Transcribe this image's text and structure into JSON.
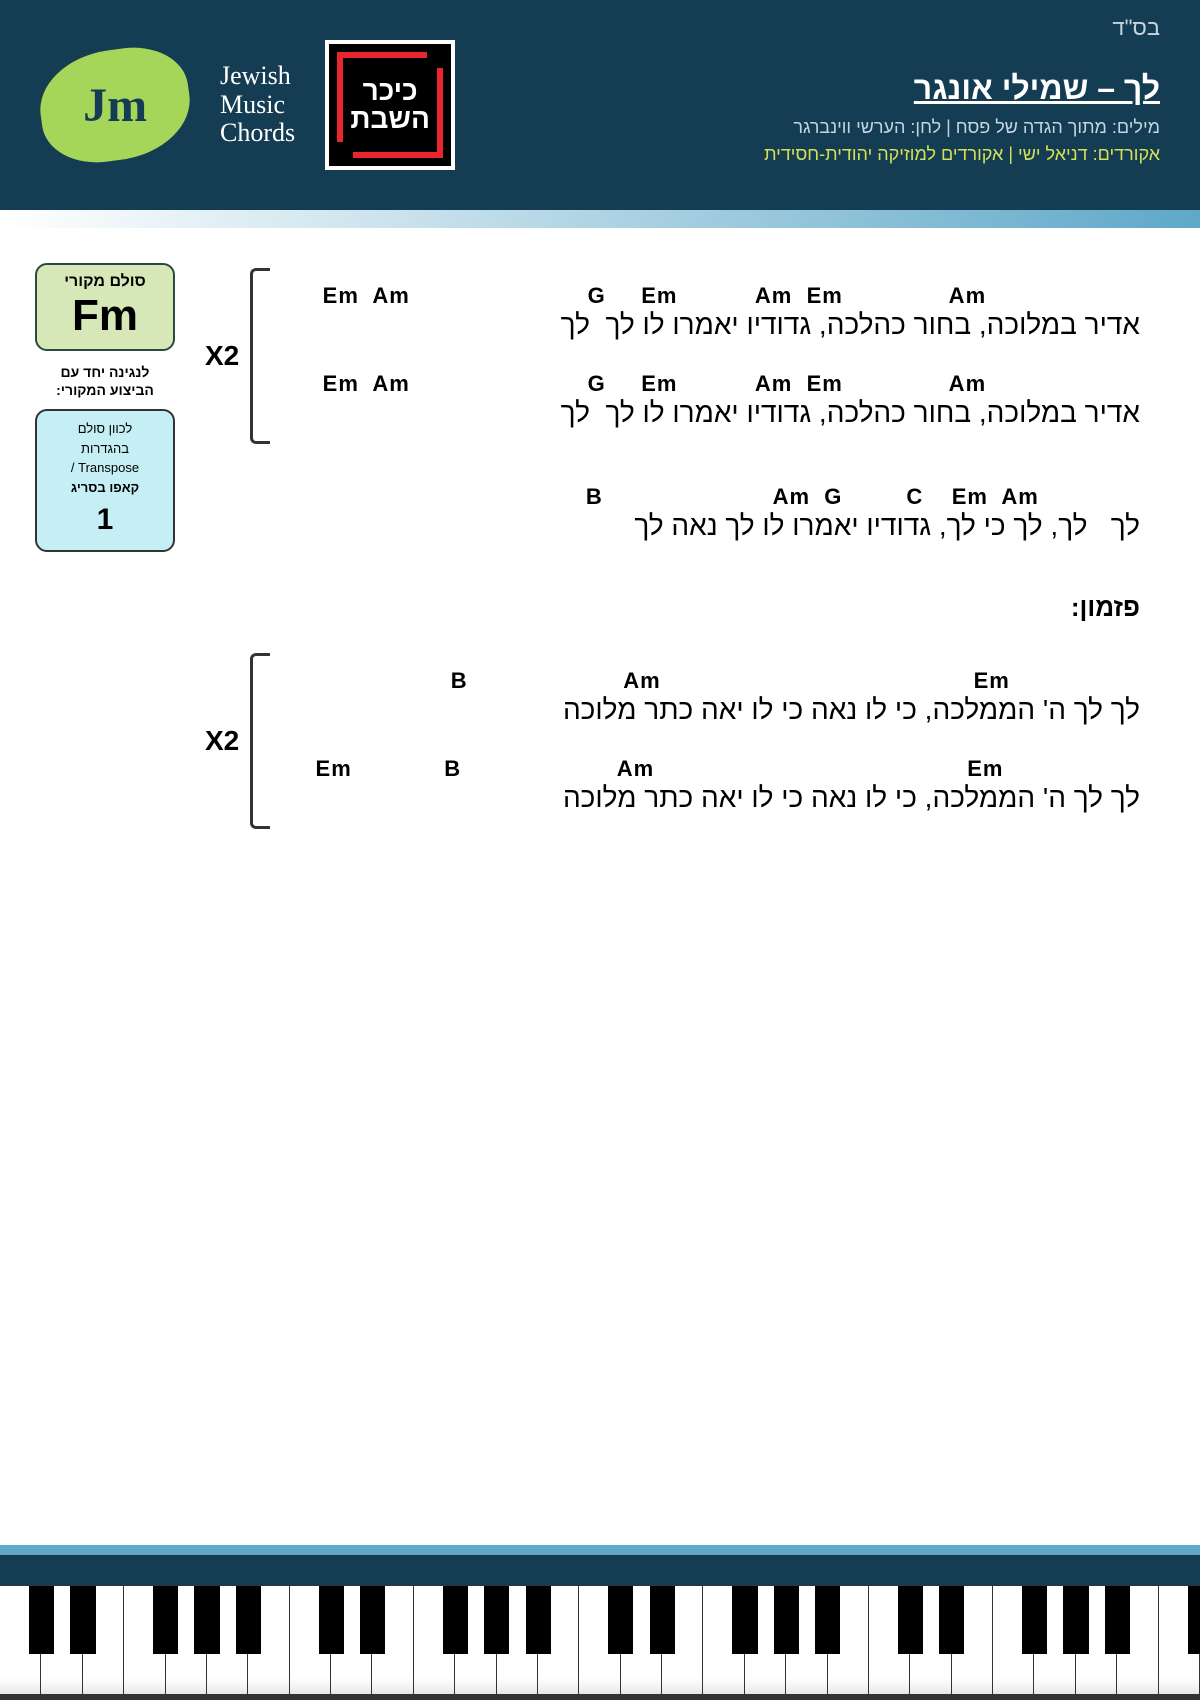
{
  "bsd": "בס\"ד",
  "logo": {
    "jm": "Jm",
    "subtitle": "Jewish\nMusic\nChords",
    "kikar1": "כיכר",
    "kikar2": "השבת"
  },
  "title": "לך – שמילי אונגר",
  "credits1": "מילים: מתוך הגדה של פסח | לחן: הערשי ווינברגר",
  "credits2": "אקורדים: דניאל ישי | אקורדים למוזיקה יהודית-חסידית",
  "keybox": {
    "label": "סולם מקורי",
    "chord": "Fm",
    "playwith": "לנגינה יחד עם\nהביצוע המקורי:",
    "capo1": "לכוון סולם",
    "capo2": "בהגדרות",
    "capo3": "Transpose /",
    "capo4": "קאפו בסריג",
    "caponum": "1"
  },
  "x2": "X2",
  "verse1": {
    "line1_ch": "      Em  Am                         G     Em           Am  Em               Am",
    "line1_ly": "אדיר במלוכה, בחור כהלכה, גדודיו יאמרו לו לך  לך",
    "line2_ch": "      Em  Am                         G     Em           Am  Em               Am",
    "line2_ly": "אדיר במלוכה, בחור כהלכה, גדודיו יאמרו לו לך  לך"
  },
  "bridge": {
    "ch": "                                           B                        Am  G         C    Em  Am",
    "ly": "לך   לך, לך כי לך, גדודיו יאמרו לו לך נאה לך"
  },
  "chorus_label": "פזמון:",
  "chorus": {
    "line1_ch": "                        B                      Am                                            Em",
    "line1_ly": "לך לך ה' הממלכה, כי לו נאה כי לו יאה כתר מלוכה",
    "line2_ch": "     Em             B                      Am                                            Em",
    "line2_ly": "לך לך ה' הממלכה, כי לו נאה כי לו יאה כתר מלוכה"
  },
  "colors": {
    "header": "#143c52",
    "accent": "#a5d65a",
    "grad": "#5fa8c8",
    "yellow": "#d4e157",
    "lightblue": "#c5eef5",
    "lightgreen": "#d7e8b8"
  },
  "piano": {
    "white_keys": 29
  }
}
